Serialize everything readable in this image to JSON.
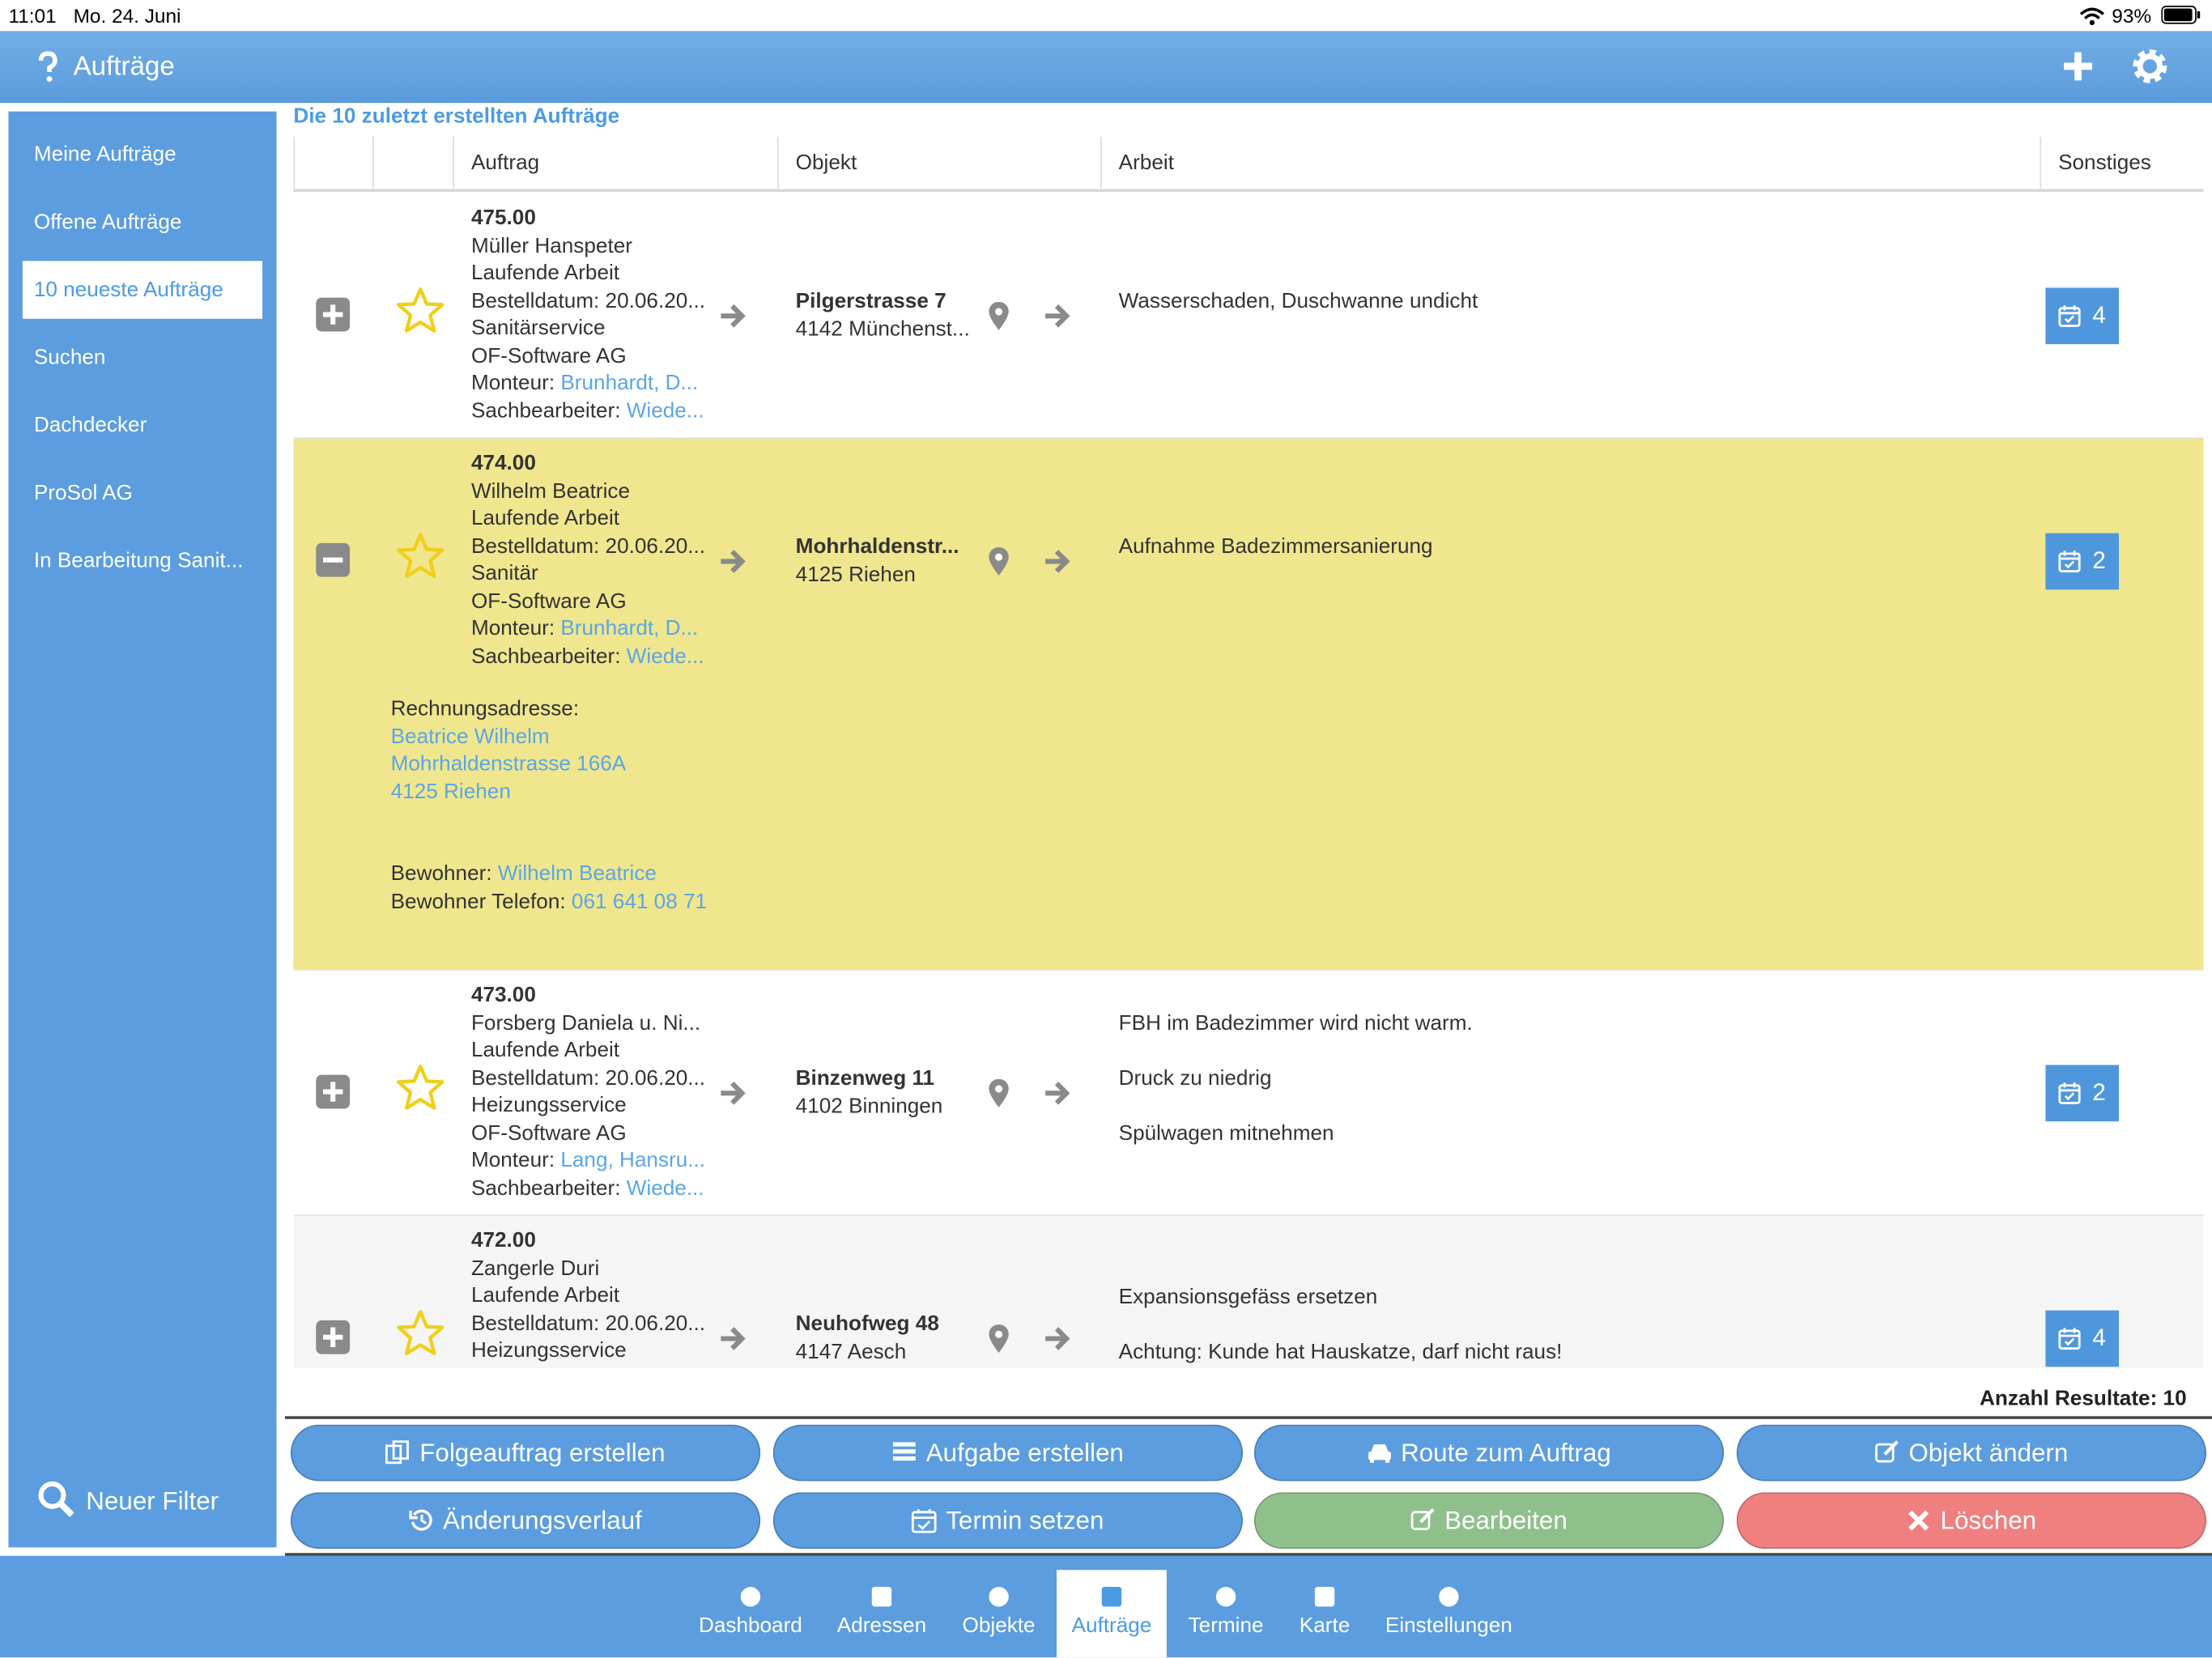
{
  "status_bar": {
    "time": "11:01",
    "date": "Mo. 24. Juni",
    "battery": "93%"
  },
  "header": {
    "title": "Aufträge"
  },
  "sidebar": {
    "items": [
      "Meine Aufträge",
      "Offene Aufträge",
      "10 neueste Aufträge",
      "Suchen",
      "Dachdecker",
      "ProSol AG",
      "In Bearbeitung Sanit..."
    ],
    "active": 2,
    "filter": "Neuer Filter"
  },
  "section_title": "Die 10 zuletzt erstellten Aufträge",
  "table": {
    "columns": [
      "Auftrag",
      "Objekt",
      "Arbeit",
      "Sonstiges"
    ],
    "rows": [
      {
        "number": "475.00",
        "lines": [
          "Müller Hanspeter",
          "Laufende Arbeit",
          "Bestelldatum: 20.06.20...",
          "Sanitärservice",
          "OF-Software AG"
        ],
        "monteur": {
          "label": "Monteur:",
          "value": "Brunhardt, D..."
        },
        "sachbearbeiter": {
          "label": "Sachbearbeiter:",
          "value": "Wiede..."
        },
        "object": {
          "street": "Pilgerstrasse 7",
          "city": "4142 Münchenst..."
        },
        "work": [
          "Wasserschaden, Duschwanne undicht"
        ],
        "tasks": 4,
        "expanded": false
      },
      {
        "number": "474.00",
        "lines": [
          "Wilhelm Beatrice",
          "Laufende Arbeit",
          "Bestelldatum: 20.06.20...",
          "Sanitär",
          "OF-Software AG"
        ],
        "monteur": {
          "label": "Monteur:",
          "value": "Brunhardt, D..."
        },
        "sachbearbeiter": {
          "label": "Sachbearbeiter:",
          "value": "Wiede..."
        },
        "object": {
          "street": "Mohrhaldenstr...",
          "city": "4125 Riehen"
        },
        "work": [
          "Aufnahme Badezimmersanierung"
        ],
        "tasks": 2,
        "expanded": true,
        "details": {
          "billing_label": "Rechnungsadresse:",
          "billing": [
            "Beatrice Wilhelm",
            "Mohrhaldenstrasse 166A",
            "4125 Riehen"
          ],
          "resident": {
            "label": "Bewohner:",
            "value": "Wilhelm Beatrice"
          },
          "phone": {
            "label": "Bewohner Telefon:",
            "value": "061 641 08 71"
          }
        }
      },
      {
        "number": "473.00",
        "lines": [
          "Forsberg Daniela u. Ni...",
          "Laufende Arbeit",
          "Bestelldatum: 20.06.20...",
          "Heizungsservice",
          "OF-Software AG"
        ],
        "monteur": {
          "label": "Monteur:",
          "value": "Lang, Hansru..."
        },
        "sachbearbeiter": {
          "label": "Sachbearbeiter:",
          "value": "Wiede..."
        },
        "object": {
          "street": "Binzenweg 11",
          "city": "4102 Binningen"
        },
        "work": [
          "FBH im Badezimmer wird nicht warm.",
          "Druck zu niedrig",
          "Spülwagen mitnehmen"
        ],
        "tasks": 2,
        "expanded": false
      },
      {
        "number": "472.00",
        "lines": [
          "Zangerle Duri",
          "Laufende Arbeit",
          "Bestelldatum: 20.06.20...",
          "Heizungsservice"
        ],
        "object": {
          "street": "Neuhofweg 48",
          "city": "4147 Aesch"
        },
        "work": [
          "Expansionsgefäss ersetzen",
          "Achtung: Kunde hat Hauskatze, darf nicht raus!"
        ],
        "tasks": 4,
        "expanded": false
      }
    ]
  },
  "result_count": "Anzahl Resultate: 10",
  "buttons": [
    {
      "label": "Folgeauftrag erstellen",
      "color": "#5b9ddf"
    },
    {
      "label": "Aufgabe erstellen",
      "color": "#5b9ddf"
    },
    {
      "label": "Route zum Auftrag",
      "color": "#5b9ddf"
    },
    {
      "label": "Objekt ändern",
      "color": "#5b9ddf"
    },
    {
      "label": "Änderungsverlauf",
      "color": "#5b9ddf"
    },
    {
      "label": "Termin setzen",
      "color": "#5b9ddf"
    },
    {
      "label": "Bearbeiten",
      "color": "#8fc08c"
    },
    {
      "label": "Löschen",
      "color": "#f08080"
    }
  ],
  "tabs": {
    "items": [
      "Dashboard",
      "Adressen",
      "Objekte",
      "Aufträge",
      "Termine",
      "Karte",
      "Einstellungen"
    ],
    "active": 3
  }
}
